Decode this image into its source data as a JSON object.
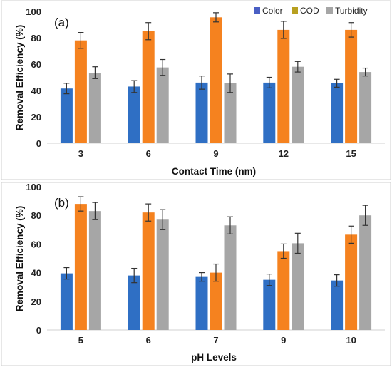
{
  "colors": {
    "Color": "#2f6fc4",
    "COD": "#f5821f",
    "Turbidity": "#a6a6a6",
    "legend_Color": "#4a5fc4",
    "legend_COD": "#b8a020",
    "legend_Turbidity": "#a6a6a6",
    "error_bar": "#333333",
    "panel_border": "#cfcfcf"
  },
  "chart_data": [
    {
      "type": "bar",
      "panel_label": "(a)",
      "xlabel": "Contact Time (nm)",
      "ylabel": "Removal Efficiency (%)",
      "ylim": [
        0,
        100
      ],
      "yticks": [
        0,
        20,
        40,
        60,
        80,
        100
      ],
      "categories": [
        "3",
        "6",
        "9",
        "12",
        "15"
      ],
      "legend": {
        "position": "top-right",
        "entries": [
          "Color",
          "COD",
          "Turbidity"
        ]
      },
      "series": [
        {
          "name": "Color",
          "values": [
            41.5,
            43,
            46,
            46,
            45.5
          ],
          "errors": [
            4,
            4.5,
            5,
            4,
            3
          ]
        },
        {
          "name": "COD",
          "values": [
            78,
            85,
            95.5,
            86,
            86
          ],
          "errors": [
            6,
            6.5,
            3.5,
            6.5,
            5.5
          ]
        },
        {
          "name": "Turbidity",
          "values": [
            53.5,
            57.5,
            45.5,
            58,
            54
          ],
          "errors": [
            4.5,
            6,
            7,
            4,
            3
          ]
        }
      ]
    },
    {
      "type": "bar",
      "panel_label": "(b)",
      "xlabel": "pH Levels",
      "ylabel": "Removal Efficiency (%)",
      "ylim": [
        0,
        100
      ],
      "yticks": [
        0,
        20,
        40,
        60,
        80,
        100
      ],
      "categories": [
        "5",
        "6",
        "7",
        "9",
        "10"
      ],
      "series": [
        {
          "name": "Color",
          "values": [
            39.5,
            38,
            37,
            35,
            34.5
          ],
          "errors": [
            4,
            5,
            3,
            4,
            4
          ]
        },
        {
          "name": "COD",
          "values": [
            88,
            82,
            40,
            55,
            66.5
          ],
          "errors": [
            5,
            6,
            6,
            5,
            6
          ]
        },
        {
          "name": "Turbidity",
          "values": [
            83,
            77,
            73,
            60.5,
            80
          ],
          "errors": [
            6,
            7,
            6,
            7,
            7
          ]
        }
      ]
    }
  ]
}
